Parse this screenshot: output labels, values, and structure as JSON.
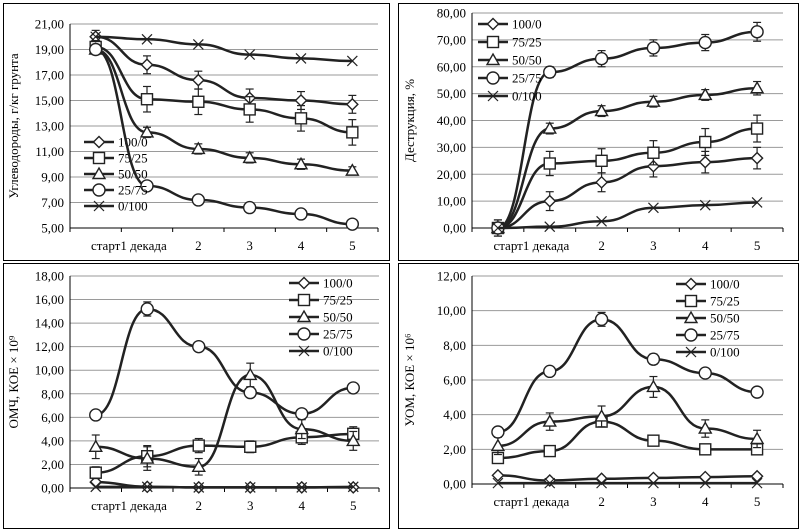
{
  "chart_data": [
    {
      "id": "carbohydrates",
      "type": "line",
      "ylabel": "Углеводороды, г/кг грунта",
      "ylim": [
        5,
        21
      ],
      "yticks": [
        "5,00",
        "7,00",
        "9,00",
        "11,00",
        "13,00",
        "15,00",
        "17,00",
        "19,00",
        "21,00"
      ],
      "ytick_values": [
        5,
        7,
        9,
        11,
        13,
        15,
        17,
        19,
        21
      ],
      "categories": [
        "старт",
        "1 декада",
        "2",
        "3",
        "4",
        "5"
      ],
      "legend_position": "middle-left",
      "series": [
        {
          "name": "100/0",
          "marker": "diamond",
          "values": [
            20.0,
            17.8,
            16.6,
            15.2,
            15.0,
            14.7
          ],
          "errors": [
            0.5,
            0.7,
            0.7,
            0.7,
            0.7,
            0.7
          ]
        },
        {
          "name": "75/25",
          "marker": "square",
          "values": [
            19.2,
            15.1,
            14.9,
            14.3,
            13.6,
            12.5
          ],
          "errors": [
            0.5,
            1.0,
            1.0,
            1.0,
            1.0,
            1.0
          ]
        },
        {
          "name": "50/50",
          "marker": "triangle",
          "values": [
            19.0,
            12.5,
            11.2,
            10.5,
            10.0,
            9.5
          ],
          "errors": [
            0.4,
            0.4,
            0.4,
            0.4,
            0.4,
            0.3
          ]
        },
        {
          "name": "25/75",
          "marker": "circle",
          "values": [
            19.0,
            8.3,
            7.2,
            6.6,
            6.1,
            5.3
          ],
          "errors": [
            0.3,
            0.2,
            0.2,
            0.2,
            0.2,
            0.2
          ]
        },
        {
          "name": "0/100",
          "marker": "x",
          "values": [
            20.0,
            19.8,
            19.4,
            18.6,
            18.3,
            18.1
          ],
          "errors": [
            0,
            0,
            0,
            0,
            0,
            0
          ]
        }
      ]
    },
    {
      "id": "destruction",
      "type": "line",
      "ylabel": "Деструкция, %",
      "ylim": [
        0,
        80
      ],
      "yticks": [
        "0,00",
        "10,00",
        "20,00",
        "30,00",
        "40,00",
        "50,00",
        "60,00",
        "70,00",
        "80,00"
      ],
      "ytick_values": [
        0,
        10,
        20,
        30,
        40,
        50,
        60,
        70,
        80
      ],
      "categories": [
        "старт",
        "1 декада",
        "2",
        "3",
        "4",
        "5"
      ],
      "legend_position": "top-left",
      "series": [
        {
          "name": "100/0",
          "marker": "diamond",
          "values": [
            0,
            10,
            17,
            23,
            24.5,
            26
          ],
          "errors": [
            3,
            3.5,
            3.5,
            4,
            4,
            4
          ]
        },
        {
          "name": "75/25",
          "marker": "square",
          "values": [
            0,
            24,
            25,
            28,
            32,
            37
          ],
          "errors": [
            3,
            4.5,
            4.5,
            4.5,
            5,
            5
          ]
        },
        {
          "name": "50/50",
          "marker": "triangle",
          "values": [
            0,
            37,
            43.5,
            47,
            49.5,
            52
          ],
          "errors": [
            2,
            2,
            2,
            2,
            2,
            2.5
          ]
        },
        {
          "name": "25/75",
          "marker": "circle",
          "values": [
            0,
            58,
            63,
            67,
            69,
            73
          ],
          "errors": [
            2,
            2,
            3,
            3,
            3,
            3.5
          ]
        },
        {
          "name": "0/100",
          "marker": "x",
          "values": [
            0,
            0.5,
            2.5,
            7.5,
            8.5,
            9.5
          ],
          "errors": [
            0,
            0,
            0,
            0,
            0,
            0
          ]
        }
      ]
    },
    {
      "id": "omch",
      "type": "line",
      "ylabel": "ОМЧ, КОЕ × 10⁹",
      "ylim": [
        0,
        18
      ],
      "yticks": [
        "0,00",
        "2,00",
        "4,00",
        "6,00",
        "8,00",
        "10,00",
        "12,00",
        "14,00",
        "16,00",
        "18,00"
      ],
      "ytick_values": [
        0,
        2,
        4,
        6,
        8,
        10,
        12,
        14,
        16,
        18
      ],
      "categories": [
        "старт",
        "1 декада",
        "2",
        "3",
        "4",
        "5"
      ],
      "legend_position": "top-right",
      "series": [
        {
          "name": "100/0",
          "marker": "diamond",
          "values": [
            0.5,
            0.1,
            0.05,
            0.05,
            0.05,
            0.05
          ],
          "errors": [
            0,
            0,
            0,
            0,
            0,
            0
          ]
        },
        {
          "name": "75/25",
          "marker": "square",
          "values": [
            1.3,
            2.7,
            3.6,
            3.5,
            4.3,
            4.6
          ],
          "errors": [
            0.5,
            0.9,
            0.6,
            0.5,
            0.6,
            0.6
          ]
        },
        {
          "name": "50/50",
          "marker": "triangle",
          "values": [
            3.5,
            2.5,
            1.8,
            9.6,
            5.0,
            4.0
          ],
          "errors": [
            1.0,
            1.0,
            0.7,
            1.0,
            0.8,
            0.8
          ]
        },
        {
          "name": "25/75",
          "marker": "circle",
          "values": [
            6.2,
            15.2,
            12.0,
            8.1,
            6.3,
            8.5
          ],
          "errors": [
            0.3,
            0.6,
            0.4,
            0.4,
            0.3,
            0.3
          ]
        },
        {
          "name": "0/100",
          "marker": "x",
          "values": [
            0.1,
            0.1,
            0.05,
            0.05,
            0.05,
            0.1
          ],
          "errors": [
            0,
            0,
            0,
            0,
            0,
            0
          ]
        }
      ]
    },
    {
      "id": "uom",
      "type": "line",
      "ylabel": "УОМ, КОЕ × 10⁶",
      "ylim": [
        0,
        12
      ],
      "yticks": [
        "0,00",
        "2,00",
        "4,00",
        "6,00",
        "8,00",
        "10,00",
        "12,00"
      ],
      "ytick_values": [
        0,
        2,
        4,
        6,
        8,
        10,
        12
      ],
      "categories": [
        "старт",
        "1 декада",
        "2",
        "3",
        "4",
        "5"
      ],
      "legend_position": "top-right",
      "series": [
        {
          "name": "100/0",
          "marker": "diamond",
          "values": [
            0.5,
            0.2,
            0.3,
            0.35,
            0.4,
            0.45
          ],
          "errors": [
            0,
            0,
            0,
            0,
            0,
            0
          ]
        },
        {
          "name": "75/25",
          "marker": "square",
          "values": [
            1.5,
            1.9,
            3.6,
            2.5,
            2.0,
            2.0
          ],
          "errors": [
            0.2,
            0.2,
            0.3,
            0.2,
            0.2,
            0.2
          ]
        },
        {
          "name": "50/50",
          "marker": "triangle",
          "values": [
            2.2,
            3.6,
            3.9,
            5.6,
            3.2,
            2.6
          ],
          "errors": [
            0.5,
            0.5,
            0.6,
            0.6,
            0.5,
            0.5
          ]
        },
        {
          "name": "25/75",
          "marker": "circle",
          "values": [
            3.0,
            6.5,
            9.5,
            7.2,
            6.4,
            5.3
          ],
          "errors": [
            0.2,
            0.2,
            0.4,
            0.3,
            0.2,
            0.2
          ]
        },
        {
          "name": "0/100",
          "marker": "x",
          "values": [
            0.05,
            0.05,
            0.05,
            0.05,
            0.05,
            0.05
          ],
          "errors": [
            0,
            0,
            0,
            0,
            0,
            0
          ]
        }
      ]
    }
  ]
}
